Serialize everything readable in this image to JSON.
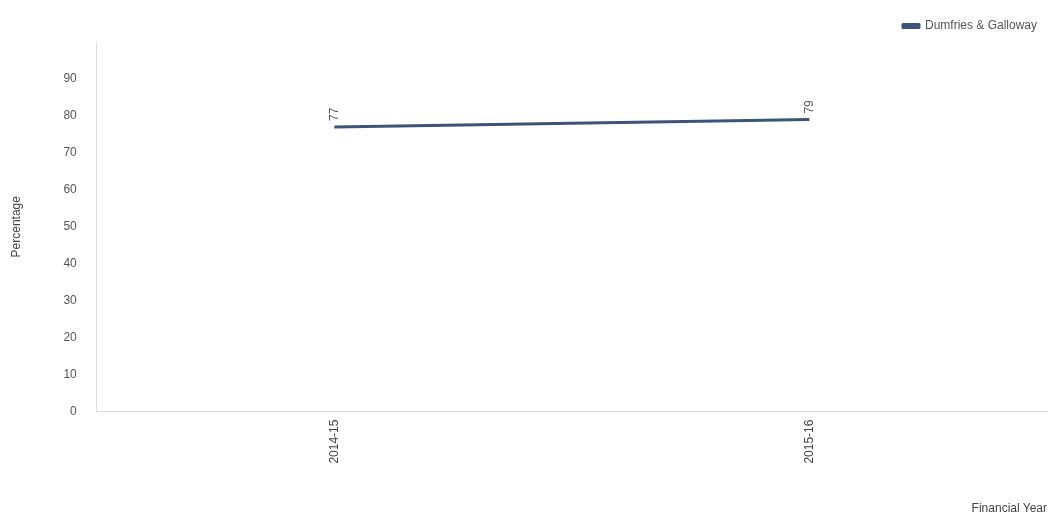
{
  "chart_data": {
    "type": "line",
    "xlabel": "Financial Year",
    "ylabel": "Percentage",
    "categories": [
      "2014-15",
      "2015-16"
    ],
    "series": [
      {
        "name": "Dumfries & Galloway",
        "color": "#3b5478",
        "values": [
          77,
          79
        ]
      }
    ],
    "ylim": [
      0,
      100
    ],
    "yticks": [
      0,
      10,
      20,
      30,
      40,
      50,
      60,
      70,
      80,
      90
    ],
    "grid": false,
    "legend": "top right",
    "marker": "none",
    "line_style": "solid",
    "data_labels": true
  }
}
